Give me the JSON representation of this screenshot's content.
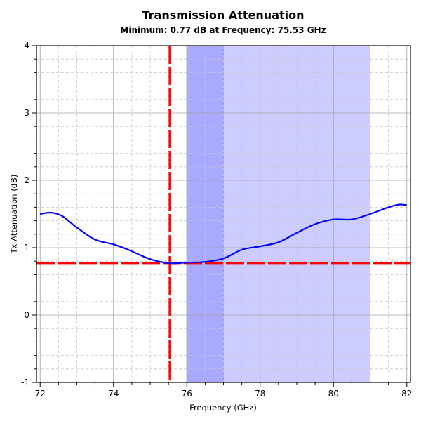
{
  "chart_data": {
    "type": "line",
    "title": "Transmission Attenuation",
    "subtitle": "Minimum: 0.77 dB at Frequency: 75.53 GHz",
    "xlabel": "Frequency (GHz)",
    "ylabel": "Tx Attenuation (dB)",
    "xlim": [
      71.9,
      82.1
    ],
    "ylim": [
      -1,
      4
    ],
    "xticks": [
      72,
      74,
      76,
      78,
      80,
      82
    ],
    "yticks": [
      -1,
      0,
      1,
      2,
      3,
      4
    ],
    "x_minor_step": 0.5,
    "y_minor_step": 0.2,
    "grid": true,
    "series": [
      {
        "name": "Tx Attenuation",
        "color": "#0000ff",
        "x": [
          72,
          72.3,
          72.6,
          73,
          73.5,
          74,
          74.4,
          75,
          75.53,
          76,
          76.5,
          77,
          77.5,
          78,
          78.5,
          79,
          79.5,
          80,
          80.5,
          81,
          81.5,
          81.8,
          82
        ],
        "y": [
          1.5,
          1.52,
          1.47,
          1.3,
          1.12,
          1.05,
          0.97,
          0.83,
          0.77,
          0.78,
          0.79,
          0.84,
          0.97,
          1.02,
          1.08,
          1.22,
          1.35,
          1.42,
          1.42,
          1.5,
          1.6,
          1.64,
          1.63
        ]
      }
    ],
    "bands": [
      {
        "from": 76,
        "to": 81,
        "color": "#9999ff",
        "opacity": 0.5
      },
      {
        "from": 76,
        "to": 77,
        "color": "#6666ff",
        "opacity": 0.35
      }
    ],
    "markers": {
      "min_x": 75.53,
      "min_y": 0.77,
      "color": "#ff0000"
    }
  }
}
